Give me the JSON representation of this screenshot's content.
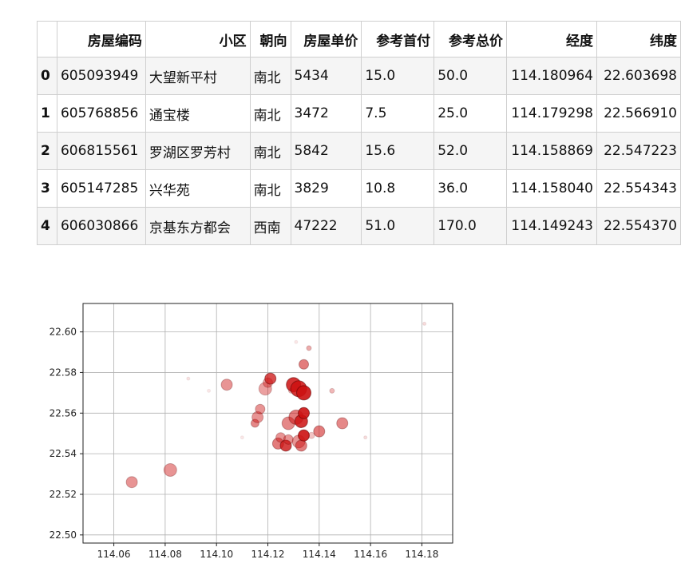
{
  "table": {
    "columns": [
      "",
      "房屋编码",
      "小区",
      "朝向",
      "房屋单价",
      "参考首付",
      "参考总价",
      "经度",
      "纬度"
    ],
    "rows": [
      {
        "index": "0",
        "code": "605093949",
        "community": "大望新平村",
        "orientation": "南北",
        "unit_price": "5434",
        "down_payment": "15.0",
        "total_price": "50.0",
        "lon": "114.180964",
        "lat": "22.603698"
      },
      {
        "index": "1",
        "code": "605768856",
        "community": "通宝楼",
        "orientation": "南北",
        "unit_price": "3472",
        "down_payment": "7.5",
        "total_price": "25.0",
        "lon": "114.179298",
        "lat": "22.566910"
      },
      {
        "index": "2",
        "code": "606815561",
        "community": "罗湖区罗芳村",
        "orientation": "南北",
        "unit_price": "5842",
        "down_payment": "15.6",
        "total_price": "52.0",
        "lon": "114.158869",
        "lat": "22.547223"
      },
      {
        "index": "3",
        "code": "605147285",
        "community": "兴华苑",
        "orientation": "南北",
        "unit_price": "3829",
        "down_payment": "10.8",
        "total_price": "36.0",
        "lon": "114.158040",
        "lat": "22.554343"
      },
      {
        "index": "4",
        "code": "606030866",
        "community": "京基东方都会",
        "orientation": "西南",
        "unit_price": "47222",
        "down_payment": "51.0",
        "total_price": "170.0",
        "lon": "114.149243",
        "lat": "22.554370"
      }
    ]
  },
  "chart_data": {
    "type": "scatter",
    "title": "",
    "xlabel": "",
    "ylabel": "",
    "xlim": [
      114.048,
      114.192
    ],
    "ylim": [
      22.496,
      22.614
    ],
    "xticks": [
      114.06,
      114.08,
      114.1,
      114.12,
      114.14,
      114.16,
      114.18
    ],
    "xtick_labels": [
      "114.06",
      "114.08",
      "114.10",
      "114.12",
      "114.14",
      "114.16",
      "114.18"
    ],
    "yticks": [
      22.5,
      22.52,
      22.54,
      22.56,
      22.58,
      22.6
    ],
    "ytick_labels": [
      "22.50",
      "22.52",
      "22.54",
      "22.56",
      "22.58",
      "22.60"
    ],
    "grid": true,
    "marker_color": "#cc1111",
    "points": [
      {
        "x": 114.067,
        "y": 22.526,
        "size": 7,
        "alpha": 0.45
      },
      {
        "x": 114.082,
        "y": 22.532,
        "size": 8,
        "alpha": 0.45
      },
      {
        "x": 114.089,
        "y": 22.577,
        "size": 2,
        "alpha": 0.12
      },
      {
        "x": 114.097,
        "y": 22.571,
        "size": 2,
        "alpha": 0.1
      },
      {
        "x": 114.104,
        "y": 22.574,
        "size": 7,
        "alpha": 0.45
      },
      {
        "x": 114.11,
        "y": 22.548,
        "size": 2,
        "alpha": 0.1
      },
      {
        "x": 114.115,
        "y": 22.555,
        "size": 5,
        "alpha": 0.5
      },
      {
        "x": 114.116,
        "y": 22.558,
        "size": 7,
        "alpha": 0.45
      },
      {
        "x": 114.117,
        "y": 22.562,
        "size": 6,
        "alpha": 0.45
      },
      {
        "x": 114.119,
        "y": 22.572,
        "size": 8,
        "alpha": 0.4
      },
      {
        "x": 114.12,
        "y": 22.575,
        "size": 6,
        "alpha": 0.4
      },
      {
        "x": 114.121,
        "y": 22.577,
        "size": 7,
        "alpha": 0.75
      },
      {
        "x": 114.124,
        "y": 22.545,
        "size": 7,
        "alpha": 0.55
      },
      {
        "x": 114.125,
        "y": 22.548,
        "size": 6,
        "alpha": 0.45
      },
      {
        "x": 114.127,
        "y": 22.544,
        "size": 7,
        "alpha": 0.8
      },
      {
        "x": 114.128,
        "y": 22.547,
        "size": 6,
        "alpha": 0.45
      },
      {
        "x": 114.128,
        "y": 22.555,
        "size": 8,
        "alpha": 0.5
      },
      {
        "x": 114.129,
        "y": 22.571,
        "size": 3,
        "alpha": 0.3
      },
      {
        "x": 114.13,
        "y": 22.574,
        "size": 9,
        "alpha": 0.85
      },
      {
        "x": 114.131,
        "y": 22.558,
        "size": 9,
        "alpha": 0.55
      },
      {
        "x": 114.131,
        "y": 22.595,
        "size": 2,
        "alpha": 0.1
      },
      {
        "x": 114.132,
        "y": 22.546,
        "size": 8,
        "alpha": 0.45
      },
      {
        "x": 114.132,
        "y": 22.572,
        "size": 10,
        "alpha": 0.85
      },
      {
        "x": 114.133,
        "y": 22.556,
        "size": 8,
        "alpha": 0.85
      },
      {
        "x": 114.133,
        "y": 22.544,
        "size": 7,
        "alpha": 0.55
      },
      {
        "x": 114.134,
        "y": 22.549,
        "size": 7,
        "alpha": 0.9
      },
      {
        "x": 114.134,
        "y": 22.56,
        "size": 7,
        "alpha": 0.9
      },
      {
        "x": 114.134,
        "y": 22.57,
        "size": 9,
        "alpha": 0.9
      },
      {
        "x": 114.134,
        "y": 22.584,
        "size": 6,
        "alpha": 0.55
      },
      {
        "x": 114.136,
        "y": 22.592,
        "size": 3,
        "alpha": 0.35
      },
      {
        "x": 114.137,
        "y": 22.549,
        "size": 4,
        "alpha": 0.25
      },
      {
        "x": 114.14,
        "y": 22.551,
        "size": 7,
        "alpha": 0.55
      },
      {
        "x": 114.145,
        "y": 22.571,
        "size": 3,
        "alpha": 0.3
      },
      {
        "x": 114.149,
        "y": 22.555,
        "size": 7,
        "alpha": 0.5
      },
      {
        "x": 114.158,
        "y": 22.548,
        "size": 2,
        "alpha": 0.15
      },
      {
        "x": 114.181,
        "y": 22.604,
        "size": 2,
        "alpha": 0.15
      }
    ]
  }
}
